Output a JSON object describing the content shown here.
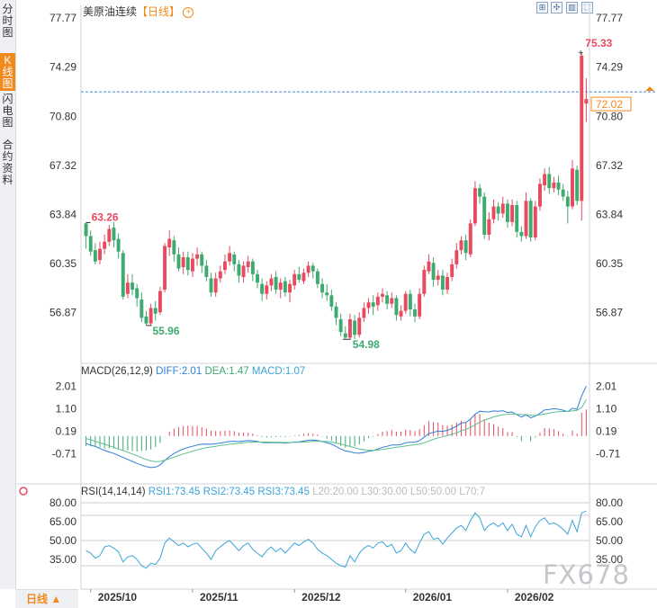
{
  "sidebar": {
    "tabs": [
      {
        "label": "分时图",
        "active": false
      },
      {
        "label": "K线图",
        "active": true
      },
      {
        "label": "闪电图",
        "active": false
      },
      {
        "label": "合约资料",
        "active": false
      }
    ],
    "period_button": "日线 ▲"
  },
  "header": {
    "instrument": "美原油连续",
    "period_tag": "【日线】",
    "zoom_icon": "zoom-in-icon"
  },
  "toolbar": {
    "icons": [
      "fit-screen-icon",
      "move-icon",
      "chart-type-icon",
      "fullscreen-icon"
    ]
  },
  "watermark": "FX678",
  "colors": {
    "up": "#e84a5f",
    "down": "#3daa6f",
    "diff": "#2f7fd8",
    "dea": "#5cbf8e",
    "rsi": "#3ba4d8",
    "accent": "#f08a1c"
  },
  "chart_data": [
    {
      "type": "candlestick",
      "title": "美原油连续【日线】",
      "y_ticks": [
        "77.77",
        "74.29",
        "70.80",
        "67.32",
        "63.84",
        "60.35",
        "56.87"
      ],
      "ylim": [
        53.4,
        77.77
      ],
      "x_ticks": [
        "2025/10",
        "2025/11",
        "2025/12",
        "2026/01",
        "2026/02"
      ],
      "last_price": "72.02",
      "annotations": {
        "high": "75.33",
        "low": "54.98",
        "local_low": "55.96",
        "start_high": "63.26"
      },
      "candles": [
        [
          63.2,
          62.3,
          63.26,
          61.4
        ],
        [
          62.3,
          61.2,
          62.7,
          60.9
        ],
        [
          61.3,
          60.5,
          61.8,
          60.3
        ],
        [
          60.6,
          61.4,
          61.9,
          60.3
        ],
        [
          61.4,
          61.9,
          62.4,
          61.0
        ],
        [
          61.9,
          62.8,
          63.1,
          61.6
        ],
        [
          62.9,
          62.0,
          63.3,
          61.5
        ],
        [
          62.1,
          61.2,
          62.5,
          60.7
        ],
        [
          61.1,
          58.0,
          61.3,
          57.8
        ],
        [
          58.2,
          59.0,
          59.6,
          57.9
        ],
        [
          59.0,
          58.5,
          59.6,
          58.1
        ],
        [
          58.6,
          57.9,
          58.9,
          57.3
        ],
        [
          57.8,
          56.5,
          58.3,
          56.2
        ],
        [
          56.6,
          56.1,
          57.0,
          55.96
        ],
        [
          56.1,
          57.2,
          57.5,
          55.96
        ],
        [
          57.2,
          56.8,
          57.7,
          56.3
        ],
        [
          56.9,
          58.4,
          58.7,
          56.7
        ],
        [
          58.5,
          61.6,
          61.8,
          58.3
        ],
        [
          61.5,
          62.1,
          62.7,
          60.9
        ],
        [
          62.0,
          61.0,
          62.3,
          60.5
        ],
        [
          61.0,
          60.0,
          61.5,
          59.8
        ],
        [
          60.1,
          60.8,
          61.2,
          59.6
        ],
        [
          60.8,
          59.9,
          61.2,
          59.5
        ],
        [
          59.8,
          60.7,
          61.1,
          59.4
        ],
        [
          60.7,
          61.0,
          61.5,
          60.2
        ],
        [
          61.0,
          60.2,
          61.2,
          59.7
        ],
        [
          60.2,
          59.4,
          60.6,
          59.1
        ],
        [
          59.3,
          58.3,
          59.7,
          58.0
        ],
        [
          58.3,
          59.3,
          59.7,
          58.0
        ],
        [
          59.3,
          59.8,
          60.2,
          59.0
        ],
        [
          59.9,
          60.5,
          61.0,
          59.6
        ],
        [
          60.5,
          61.1,
          61.6,
          60.2
        ],
        [
          61.0,
          60.3,
          61.2,
          59.8
        ],
        [
          60.3,
          59.5,
          60.6,
          59.0
        ],
        [
          59.4,
          60.2,
          60.5,
          59.0
        ],
        [
          60.1,
          60.5,
          60.9,
          59.7
        ],
        [
          60.5,
          59.6,
          60.7,
          59.1
        ],
        [
          59.6,
          59.0,
          59.9,
          58.6
        ],
        [
          58.9,
          58.2,
          59.3,
          57.7
        ],
        [
          58.2,
          58.8,
          59.1,
          57.8
        ],
        [
          58.8,
          59.3,
          59.6,
          58.4
        ],
        [
          59.4,
          58.5,
          59.8,
          58.2
        ],
        [
          58.5,
          59.0,
          59.3,
          57.9
        ],
        [
          59.1,
          58.3,
          59.4,
          58.0
        ],
        [
          58.3,
          58.9,
          59.2,
          57.6
        ],
        [
          58.8,
          59.6,
          59.9,
          58.5
        ],
        [
          59.6,
          59.2,
          60.1,
          59.0
        ],
        [
          59.1,
          59.7,
          60.0,
          58.9
        ],
        [
          59.7,
          60.2,
          60.5,
          59.4
        ],
        [
          60.2,
          59.8,
          60.4,
          59.3
        ],
        [
          59.8,
          58.9,
          60.0,
          58.6
        ],
        [
          58.9,
          58.3,
          59.3,
          57.9
        ],
        [
          58.3,
          58.1,
          58.9,
          57.7
        ],
        [
          58.1,
          57.3,
          58.5,
          57.0
        ],
        [
          57.3,
          56.5,
          57.6,
          56.0
        ],
        [
          56.4,
          55.5,
          56.8,
          55.2
        ],
        [
          55.4,
          55.1,
          55.9,
          54.98
        ],
        [
          55.1,
          56.4,
          56.8,
          54.98
        ],
        [
          56.3,
          55.3,
          56.7,
          55.0
        ],
        [
          55.3,
          56.5,
          56.9,
          55.1
        ],
        [
          56.5,
          57.2,
          57.6,
          56.2
        ],
        [
          57.2,
          57.6,
          57.9,
          56.8
        ],
        [
          57.6,
          57.3,
          58.1,
          56.7
        ],
        [
          57.4,
          58.0,
          58.3,
          57.0
        ],
        [
          58.0,
          58.2,
          58.6,
          57.6
        ],
        [
          58.1,
          57.5,
          58.4,
          57.1
        ],
        [
          57.5,
          57.9,
          58.3,
          57.2
        ],
        [
          57.9,
          56.7,
          58.1,
          56.3
        ],
        [
          56.6,
          57.0,
          57.4,
          56.3
        ],
        [
          57.0,
          58.2,
          58.4,
          56.8
        ],
        [
          58.2,
          57.1,
          58.5,
          56.6
        ],
        [
          57.1,
          56.6,
          57.5,
          56.2
        ],
        [
          56.6,
          58.2,
          58.6,
          56.4
        ],
        [
          58.2,
          59.9,
          60.2,
          58.0
        ],
        [
          59.8,
          60.5,
          61.0,
          59.6
        ],
        [
          60.4,
          59.2,
          60.8,
          58.7
        ],
        [
          59.2,
          59.5,
          59.9,
          58.8
        ],
        [
          59.5,
          58.5,
          59.9,
          58.1
        ],
        [
          58.5,
          59.4,
          59.7,
          58.2
        ],
        [
          59.4,
          60.3,
          60.7,
          59.1
        ],
        [
          60.3,
          61.3,
          61.8,
          60.0
        ],
        [
          61.3,
          62.0,
          62.3,
          61.0
        ],
        [
          62.0,
          61.1,
          62.4,
          60.6
        ],
        [
          61.0,
          63.2,
          63.5,
          60.8
        ],
        [
          63.2,
          65.7,
          66.2,
          63.0
        ],
        [
          65.7,
          65.1,
          66.0,
          64.6
        ],
        [
          65.1,
          62.4,
          65.4,
          62.1
        ],
        [
          62.4,
          63.5,
          64.0,
          62.0
        ],
        [
          63.5,
          64.4,
          64.9,
          63.2
        ],
        [
          64.4,
          63.9,
          64.7,
          63.4
        ],
        [
          63.9,
          64.6,
          65.1,
          63.6
        ],
        [
          64.6,
          63.3,
          64.9,
          62.9
        ],
        [
          63.3,
          64.5,
          64.9,
          63.0
        ],
        [
          64.5,
          62.6,
          64.8,
          62.2
        ],
        [
          62.6,
          62.3,
          63.0,
          61.9
        ],
        [
          62.3,
          64.8,
          65.4,
          62.1
        ],
        [
          64.8,
          62.2,
          65.0,
          61.9
        ],
        [
          62.2,
          64.4,
          64.8,
          62.0
        ],
        [
          64.4,
          66.0,
          66.4,
          64.1
        ],
        [
          65.9,
          66.7,
          67.1,
          65.5
        ],
        [
          66.7,
          65.7,
          67.2,
          65.3
        ],
        [
          65.7,
          66.1,
          66.5,
          65.4
        ],
        [
          66.1,
          65.6,
          66.6,
          65.2
        ],
        [
          65.6,
          65.1,
          66.0,
          64.8
        ],
        [
          65.1,
          64.4,
          65.5,
          63.2
        ],
        [
          64.4,
          67.1,
          67.7,
          64.2
        ],
        [
          67.0,
          64.8,
          67.3,
          64.5
        ],
        [
          64.8,
          75.1,
          75.33,
          63.4
        ],
        [
          71.7,
          72.02,
          73.5,
          70.4
        ]
      ]
    },
    {
      "type": "line",
      "title": "MACD(26,12,9)",
      "legend": [
        "DIFF:2.01",
        "DEA:1.47",
        "MACD:1.07"
      ],
      "y_ticks": [
        "2.01",
        "1.10",
        "0.19",
        "-0.71"
      ],
      "ylim": [
        -1.2,
        2.2
      ],
      "series": [
        {
          "name": "DIFF",
          "values": [
            -0.3,
            -0.36,
            -0.42,
            -0.5,
            -0.58,
            -0.64,
            -0.7,
            -0.78,
            -0.86,
            -0.94,
            -1.02,
            -1.1,
            -1.17,
            -1.23,
            -1.27,
            -1.25,
            -1.16,
            -0.98,
            -0.82,
            -0.7,
            -0.6,
            -0.52,
            -0.46,
            -0.41,
            -0.36,
            -0.33,
            -0.32,
            -0.33,
            -0.31,
            -0.28,
            -0.25,
            -0.22,
            -0.21,
            -0.22,
            -0.2,
            -0.18,
            -0.19,
            -0.22,
            -0.26,
            -0.27,
            -0.26,
            -0.27,
            -0.27,
            -0.28,
            -0.27,
            -0.24,
            -0.23,
            -0.2,
            -0.17,
            -0.16,
            -0.18,
            -0.22,
            -0.27,
            -0.33,
            -0.42,
            -0.52,
            -0.6,
            -0.63,
            -0.68,
            -0.69,
            -0.66,
            -0.61,
            -0.58,
            -0.52,
            -0.45,
            -0.41,
            -0.36,
            -0.36,
            -0.34,
            -0.27,
            -0.25,
            -0.25,
            -0.18,
            -0.05,
            0.1,
            0.15,
            0.2,
            0.19,
            0.23,
            0.3,
            0.4,
            0.52,
            0.55,
            0.68,
            0.88,
            1.0,
            0.98,
            0.97,
            1.01,
            1.0,
            1.02,
            0.95,
            0.97,
            0.86,
            0.76,
            0.85,
            0.74,
            0.8,
            0.92,
            1.05,
            1.07,
            1.1,
            1.08,
            1.04,
            0.98,
            1.12,
            1.08,
            1.62,
            2.01
          ]
        },
        {
          "name": "DEA",
          "values": [
            -0.1,
            -0.15,
            -0.21,
            -0.27,
            -0.33,
            -0.39,
            -0.45,
            -0.52,
            -0.58,
            -0.65,
            -0.72,
            -0.79,
            -0.87,
            -0.94,
            -1.0,
            -1.03,
            -1.02,
            -0.97,
            -0.91,
            -0.85,
            -0.78,
            -0.72,
            -0.67,
            -0.61,
            -0.56,
            -0.51,
            -0.47,
            -0.44,
            -0.41,
            -0.38,
            -0.36,
            -0.33,
            -0.31,
            -0.29,
            -0.27,
            -0.25,
            -0.24,
            -0.24,
            -0.24,
            -0.24,
            -0.24,
            -0.25,
            -0.25,
            -0.26,
            -0.26,
            -0.25,
            -0.25,
            -0.24,
            -0.23,
            -0.21,
            -0.21,
            -0.21,
            -0.22,
            -0.24,
            -0.28,
            -0.32,
            -0.37,
            -0.42,
            -0.47,
            -0.52,
            -0.55,
            -0.57,
            -0.57,
            -0.56,
            -0.54,
            -0.51,
            -0.48,
            -0.45,
            -0.43,
            -0.4,
            -0.37,
            -0.35,
            -0.32,
            -0.27,
            -0.2,
            -0.13,
            -0.07,
            -0.03,
            0.02,
            0.07,
            0.13,
            0.21,
            0.27,
            0.35,
            0.45,
            0.56,
            0.64,
            0.7,
            0.77,
            0.81,
            0.86,
            0.87,
            0.89,
            0.88,
            0.86,
            0.86,
            0.84,
            0.83,
            0.85,
            0.89,
            0.92,
            0.96,
            0.98,
            0.99,
            0.99,
            1.01,
            1.03,
            1.15,
            1.47
          ]
        }
      ],
      "bars": {
        "name": "MACD",
        "values": [
          -0.4,
          -0.42,
          -0.42,
          -0.46,
          -0.5,
          -0.5,
          -0.5,
          -0.52,
          -0.56,
          -0.58,
          -0.6,
          -0.62,
          -0.6,
          -0.58,
          -0.54,
          -0.44,
          -0.28,
          -0.02,
          0.18,
          0.3,
          0.36,
          0.4,
          0.42,
          0.4,
          0.4,
          0.36,
          0.3,
          0.22,
          0.2,
          0.2,
          0.22,
          0.22,
          0.2,
          0.14,
          0.14,
          0.14,
          0.1,
          0.04,
          -0.04,
          -0.06,
          -0.04,
          -0.04,
          -0.04,
          -0.04,
          -0.02,
          0.02,
          0.04,
          0.08,
          0.12,
          0.1,
          0.06,
          -0.02,
          -0.1,
          -0.18,
          -0.28,
          -0.4,
          -0.46,
          -0.42,
          -0.42,
          -0.34,
          -0.22,
          -0.08,
          -0.02,
          0.08,
          0.18,
          0.2,
          0.24,
          0.18,
          0.18,
          0.26,
          0.24,
          0.2,
          0.28,
          0.44,
          0.6,
          0.56,
          0.54,
          0.44,
          0.42,
          0.46,
          0.54,
          0.62,
          0.56,
          0.66,
          0.86,
          0.88,
          0.68,
          0.54,
          0.48,
          0.38,
          0.32,
          0.16,
          0.16,
          -0.04,
          -0.2,
          -0.02,
          -0.2,
          -0.06,
          0.14,
          0.32,
          0.3,
          0.28,
          0.2,
          0.1,
          -0.02,
          0.22,
          0.1,
          0.94,
          1.07
        ]
      }
    },
    {
      "type": "line",
      "title": "RSI(14,14,14)",
      "legend": [
        "RSI1:73.45",
        "RSI2:73.45",
        "RSI3:73.45"
      ],
      "right_legend": [
        "L20:20.00",
        "L30:30.00",
        "L50:50.00",
        "L70:7"
      ],
      "y_ticks": [
        "80.00",
        "65.00",
        "50.00",
        "35.00"
      ],
      "ylim": [
        20,
        85
      ],
      "reference_lines": [
        80,
        70,
        50,
        30
      ],
      "series": [
        {
          "name": "RSI1",
          "values": [
            42,
            40,
            36,
            38,
            45,
            46,
            44,
            41,
            33,
            37,
            38,
            35,
            30,
            28,
            32,
            31,
            36,
            48,
            52,
            49,
            46,
            48,
            45,
            47,
            48,
            44,
            40,
            35,
            42,
            45,
            48,
            50,
            46,
            42,
            46,
            48,
            43,
            40,
            37,
            42,
            45,
            41,
            44,
            40,
            44,
            48,
            46,
            49,
            51,
            48,
            43,
            40,
            38,
            35,
            32,
            30,
            29,
            38,
            33,
            40,
            44,
            46,
            44,
            48,
            49,
            45,
            47,
            40,
            42,
            48,
            43,
            40,
            48,
            55,
            57,
            51,
            52,
            47,
            52,
            56,
            60,
            62,
            58,
            66,
            72,
            68,
            58,
            62,
            64,
            61,
            64,
            58,
            63,
            55,
            53,
            62,
            53,
            61,
            66,
            68,
            63,
            64,
            62,
            59,
            55,
            66,
            57,
            72,
            73.45
          ]
        }
      ]
    }
  ]
}
